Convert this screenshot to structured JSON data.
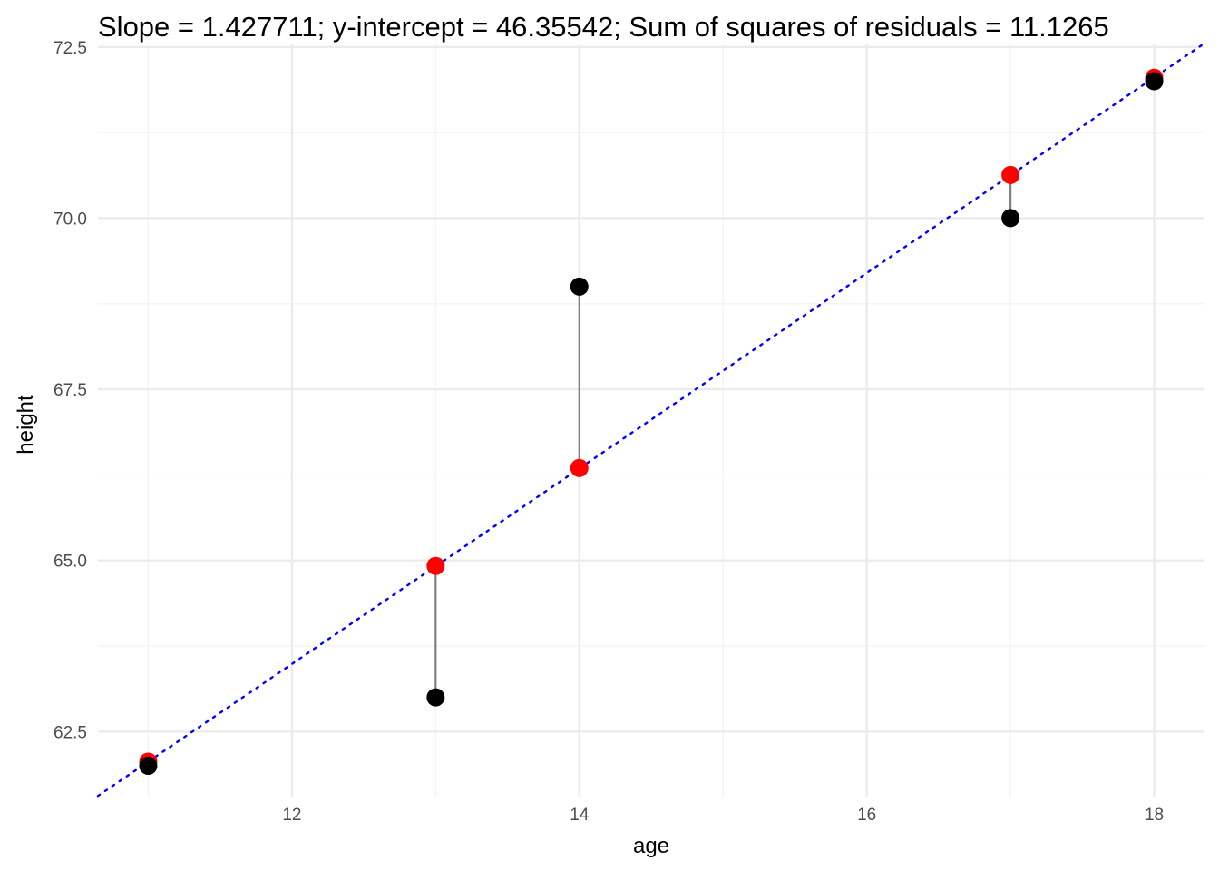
{
  "chart_data": {
    "type": "scatter",
    "title": "Slope = 1.427711; y-intercept = 46.35542; Sum of squares of residuals = 11.1265",
    "xlabel": "age",
    "ylabel": "height",
    "xlim": [
      10.65,
      18.35
    ],
    "ylim": [
      61.55,
      72.55
    ],
    "x_ticks": [
      12,
      14,
      16,
      18
    ],
    "x_tick_labels": [
      "12",
      "14",
      "16",
      "18"
    ],
    "x_minor_ticks": [
      11,
      13,
      15,
      17
    ],
    "y_ticks": [
      62.5,
      65.0,
      67.5,
      70.0,
      72.5
    ],
    "y_tick_labels": [
      "62.5",
      "65.0",
      "67.5",
      "70.0",
      "72.5"
    ],
    "y_minor_ticks": [
      63.75,
      66.25,
      68.75,
      71.25
    ],
    "grid": true,
    "legend": "none",
    "fit_line": {
      "slope": 1.427711,
      "intercept": 46.35542,
      "color": "#0000ff",
      "style": "dotted"
    },
    "series": [
      {
        "points": [
          {
            "x": 11,
            "y": 62
          },
          {
            "x": 13,
            "y": 63
          },
          {
            "x": 14,
            "y": 69
          },
          {
            "x": 17,
            "y": 70
          },
          {
            "x": 18,
            "y": 72
          }
        ],
        "color": "#000000"
      },
      {
        "points": [
          {
            "x": 11,
            "y": 62.06
          },
          {
            "x": 13,
            "y": 64.92
          },
          {
            "x": 14,
            "y": 66.35
          },
          {
            "x": 17,
            "y": 70.63
          },
          {
            "x": 18,
            "y": 72.05
          }
        ],
        "color": "#ff0000"
      }
    ],
    "residual_segment_color": "#808080",
    "grid_major_color": "#ebebeb",
    "grid_minor_color": "#f2f2f2"
  }
}
